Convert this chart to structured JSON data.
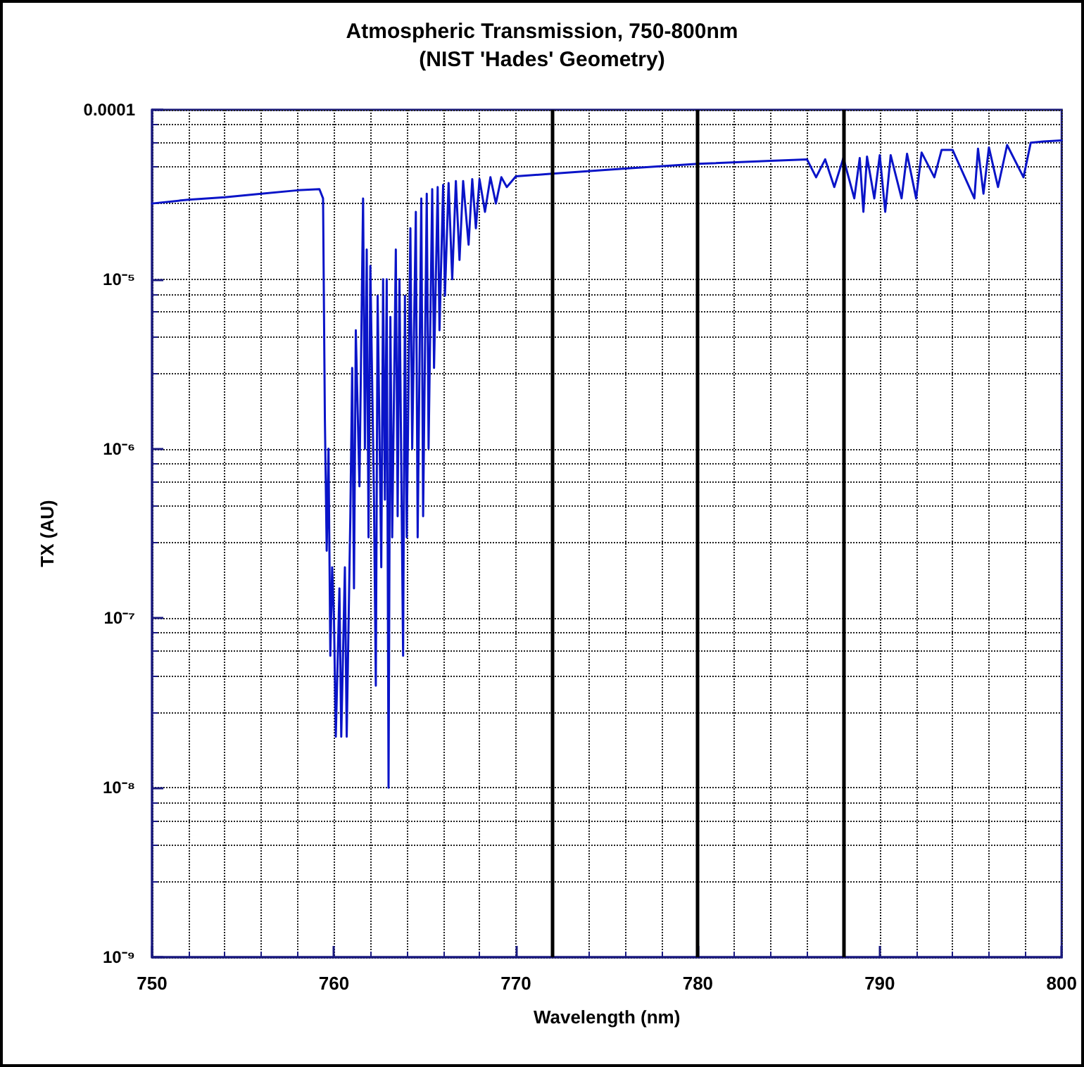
{
  "chart_data": {
    "type": "line",
    "title": "Atmospheric Transmission, 750-800nm",
    "subtitle": "(NIST 'Hades' Geometry)",
    "xlabel": "Wavelength (nm)",
    "ylabel": "TX (AU)",
    "log": "y",
    "grid": true,
    "marker": "none",
    "line_style": "solid",
    "xlim": [
      750,
      800
    ],
    "xticks": [
      750,
      760,
      770,
      780,
      790,
      800
    ],
    "ylim": [
      1e-09,
      0.0001
    ],
    "yticks": [
      {
        "value": 1e-09,
        "label": "10⁻⁹"
      },
      {
        "value": 1e-08,
        "label": "10⁻⁸"
      },
      {
        "value": 1e-07,
        "label": "10⁻⁷"
      },
      {
        "value": 1e-06,
        "label": "10⁻⁶"
      },
      {
        "value": 1e-05,
        "label": "10⁻⁵"
      },
      {
        "value": 0.0001,
        "label": "0.0001"
      }
    ],
    "ref_lines": [
      {
        "axis": "x",
        "value": 772,
        "color": "#000000"
      },
      {
        "axis": "x",
        "value": 780,
        "color": "#000000"
      },
      {
        "axis": "x",
        "value": 788,
        "color": "#000000"
      }
    ],
    "series": [
      {
        "color": "#0a14c8",
        "x": [
          750,
          752,
          754,
          756,
          758,
          759.2,
          759.4,
          759.5,
          759.6,
          759.7,
          759.8,
          759.9,
          760.0,
          760.1,
          760.3,
          760.4,
          760.6,
          760.7,
          760.9,
          761.0,
          761.1,
          761.2,
          761.4,
          761.6,
          761.7,
          761.8,
          761.9,
          762.0,
          762.2,
          762.3,
          762.4,
          762.6,
          762.7,
          762.8,
          762.9,
          763.0,
          763.1,
          763.2,
          763.4,
          763.5,
          763.6,
          763.8,
          763.9,
          764.0,
          764.2,
          764.3,
          764.5,
          764.6,
          764.8,
          764.9,
          765.1,
          765.2,
          765.4,
          765.5,
          765.7,
          765.8,
          766.0,
          766.1,
          766.3,
          766.5,
          766.7,
          766.9,
          767.1,
          767.4,
          767.6,
          767.8,
          768.0,
          768.3,
          768.6,
          768.9,
          769.2,
          769.5,
          770,
          772,
          776,
          780,
          784,
          786,
          786.5,
          787,
          787.5,
          788,
          788.6,
          788.9,
          789.1,
          789.3,
          789.7,
          790,
          790.3,
          790.6,
          791.2,
          791.5,
          792.0,
          792.3,
          793,
          793.4,
          794,
          795.2,
          795.4,
          795.7,
          796,
          796.5,
          797,
          797.9,
          798.3,
          799,
          800
        ],
        "values": [
          2.8e-05,
          2.95e-05,
          3.05e-05,
          3.2e-05,
          3.35e-05,
          3.4e-05,
          3e-05,
          1.5e-06,
          2.5e-07,
          1e-06,
          6e-08,
          2e-07,
          1e-07,
          2e-08,
          1.5e-07,
          2e-08,
          2e-07,
          2e-08,
          4e-07,
          3e-06,
          1.5e-07,
          5e-06,
          6e-07,
          3e-05,
          1e-06,
          1.5e-05,
          3e-07,
          1.2e-05,
          5e-07,
          4e-08,
          8e-06,
          2e-07,
          1e-05,
          5e-07,
          1e-05,
          1e-08,
          6e-06,
          3e-07,
          1.5e-05,
          4e-07,
          1e-05,
          6e-08,
          8e-06,
          3e-07,
          2e-05,
          1e-06,
          2.5e-05,
          3e-07,
          3e-05,
          4e-07,
          3.2e-05,
          1e-06,
          3.4e-05,
          3e-06,
          3.5e-05,
          5e-06,
          3.6e-05,
          8e-06,
          3.7e-05,
          1e-05,
          3.8e-05,
          1.3e-05,
          3.8e-05,
          1.6e-05,
          3.9e-05,
          2e-05,
          3.9e-05,
          2.5e-05,
          4e-05,
          2.8e-05,
          4e-05,
          3.5e-05,
          4.05e-05,
          4.2e-05,
          4.5e-05,
          4.8e-05,
          5e-05,
          5.1e-05,
          4e-05,
          5.1e-05,
          3.5e-05,
          5.2e-05,
          3e-05,
          5.2e-05,
          2.5e-05,
          5.3e-05,
          3e-05,
          5.4e-05,
          2.5e-05,
          5.4e-05,
          3e-05,
          5.5e-05,
          3e-05,
          5.6e-05,
          4e-05,
          5.8e-05,
          5.8e-05,
          3e-05,
          5.9e-05,
          3.2e-05,
          6e-05,
          3.5e-05,
          6.2e-05,
          4e-05,
          6.4e-05,
          6.5e-05,
          6.6e-05
        ]
      }
    ]
  }
}
